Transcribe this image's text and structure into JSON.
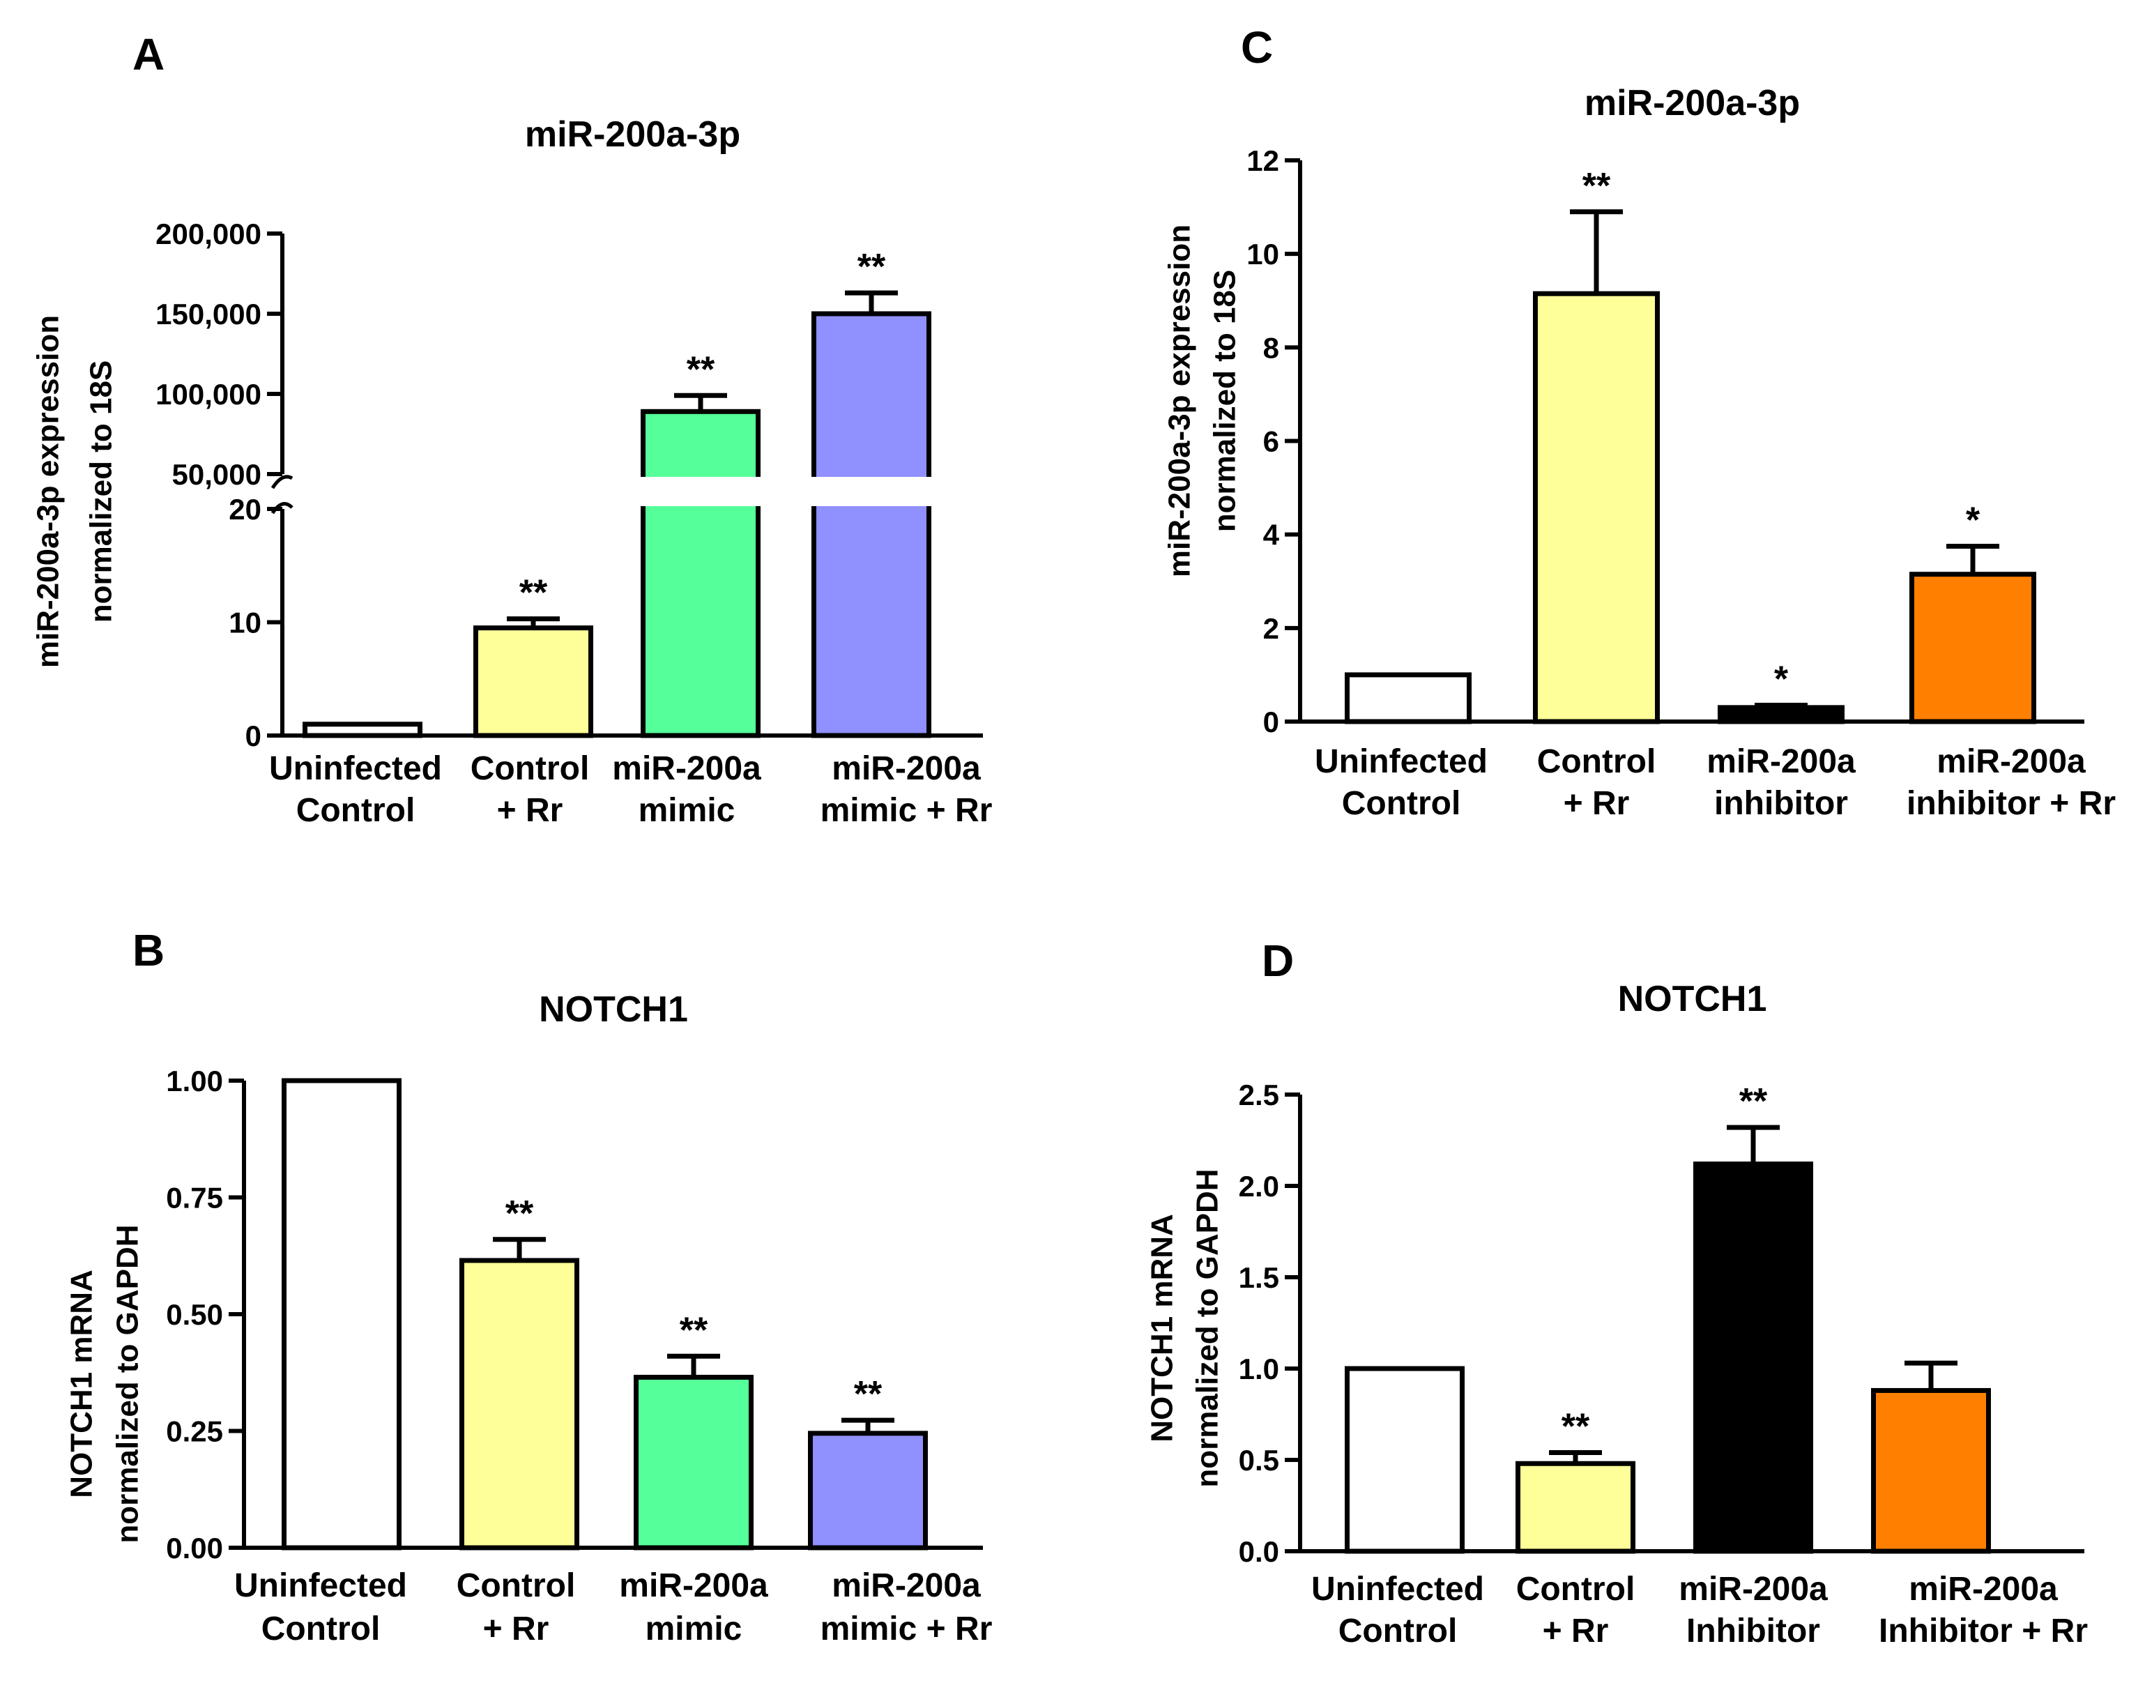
{
  "chart_data": [
    {
      "panel": "A",
      "type": "bar",
      "title": "miR-200a-3p",
      "ylabel": [
        "miR-200a-3p expression",
        "normalized to 18S"
      ],
      "categories": [
        [
          "Uninfected",
          "Control"
        ],
        [
          "Control",
          "+ Rr"
        ],
        [
          "miR-200a",
          "mimic"
        ],
        [
          "miR-200a",
          "mimic + Rr"
        ]
      ],
      "values": [
        1,
        9.5,
        89000,
        150000
      ],
      "errors": [
        0,
        0.8,
        10000,
        13000
      ],
      "colors": [
        "#ffffff",
        "#ffff99",
        "#55ff99",
        "#9090ff"
      ],
      "significance": [
        "",
        "**",
        "**",
        "**"
      ],
      "axis_break": true,
      "lower_ylim": [
        0,
        20
      ],
      "lower_ticks": [
        "0",
        "10",
        "20"
      ],
      "upper_ylim": [
        50000,
        200000
      ],
      "upper_ticks": [
        "50,000",
        "100,000",
        "150,000",
        "200,000"
      ]
    },
    {
      "panel": "B",
      "type": "bar",
      "title": "NOTCH1",
      "ylabel": [
        "NOTCH1 mRNA",
        "normalized to GAPDH"
      ],
      "categories": [
        [
          "Uninfected",
          "Control"
        ],
        [
          "Control",
          "+ Rr"
        ],
        [
          "miR-200a",
          "mimic"
        ],
        [
          "miR-200a",
          "mimic + Rr"
        ]
      ],
      "values": [
        1.0,
        0.615,
        0.365,
        0.245
      ],
      "errors": [
        0,
        0.045,
        0.045,
        0.028
      ],
      "colors": [
        "#ffffff",
        "#ffff99",
        "#55ff99",
        "#9090ff"
      ],
      "significance": [
        "",
        "**",
        "**",
        "**"
      ],
      "ylim": [
        0,
        1.0
      ],
      "yticks": [
        "0.00",
        "0.25",
        "0.50",
        "0.75",
        "1.00"
      ]
    },
    {
      "panel": "C",
      "type": "bar",
      "title": "miR-200a-3p",
      "ylabel": [
        "miR-200a-3p expression",
        "normalized to 18S"
      ],
      "categories": [
        [
          "Uninfected",
          "Control"
        ],
        [
          "Control",
          "+ Rr"
        ],
        [
          "miR-200a",
          "inhibitor"
        ],
        [
          "miR-200a",
          "inhibitor + Rr"
        ]
      ],
      "values": [
        1.0,
        9.15,
        0.3,
        3.15
      ],
      "errors": [
        0,
        1.75,
        0.05,
        0.6
      ],
      "colors": [
        "#ffffff",
        "#ffff99",
        "#000000",
        "#ff8000"
      ],
      "significance": [
        "",
        "**",
        "*",
        "*"
      ],
      "ylim": [
        0,
        12
      ],
      "yticks": [
        "0",
        "2",
        "4",
        "6",
        "8",
        "10",
        "12"
      ]
    },
    {
      "panel": "D",
      "type": "bar",
      "title": "NOTCH1",
      "ylabel": [
        "NOTCH1 mRNA",
        "normalized to GAPDH"
      ],
      "categories": [
        [
          "Uninfected",
          "Control"
        ],
        [
          "Control",
          "+ Rr"
        ],
        [
          "miR-200a",
          "Inhibitor"
        ],
        [
          "miR-200a",
          "Inhibitor + Rr"
        ]
      ],
      "values": [
        1.0,
        0.48,
        2.12,
        0.88
      ],
      "errors": [
        0,
        0.06,
        0.2,
        0.15
      ],
      "colors": [
        "#ffffff",
        "#ffff99",
        "#000000",
        "#ff8000"
      ],
      "significance": [
        "",
        "**",
        "**",
        ""
      ],
      "ylim": [
        0,
        2.5
      ],
      "yticks": [
        "0.0",
        "0.5",
        "1.0",
        "1.5",
        "2.0",
        "2.5"
      ]
    }
  ]
}
